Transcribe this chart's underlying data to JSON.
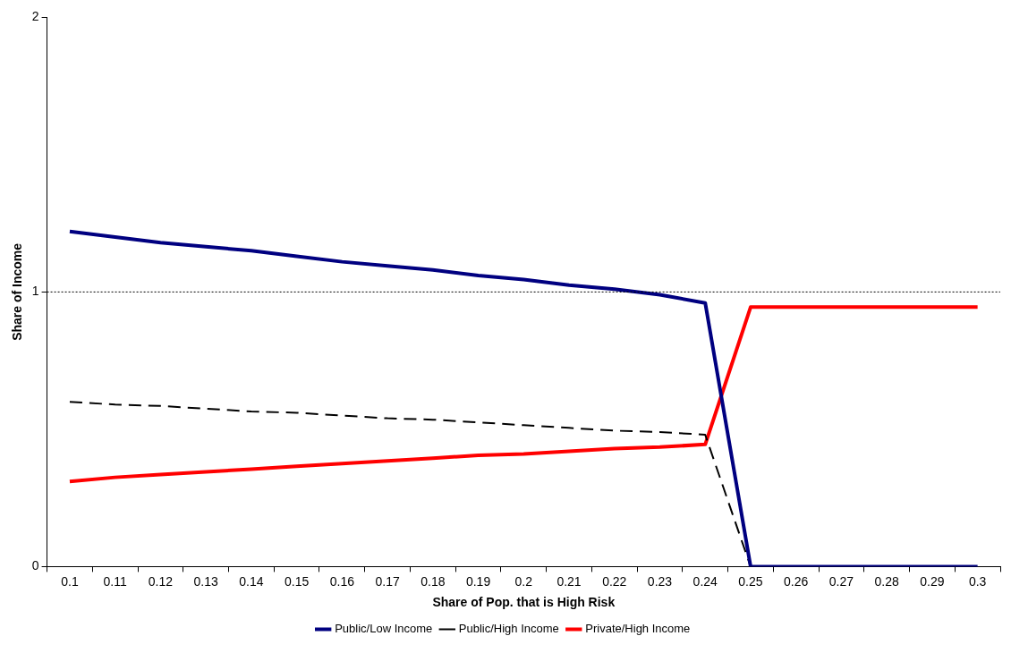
{
  "chart_data": {
    "type": "line",
    "xlabel": "Share of Pop. that is High Risk",
    "ylabel": "Share of Income",
    "categories": [
      "0.1",
      "0.11",
      "0.12",
      "0.13",
      "0.14",
      "0.15",
      "0.16",
      "0.17",
      "0.18",
      "0.19",
      "0.2",
      "0.21",
      "0.22",
      "0.23",
      "0.24",
      "0.25",
      "0.26",
      "0.27",
      "0.28",
      "0.29",
      "0.3"
    ],
    "series": [
      {
        "name": "Public/Low Income",
        "color": "#000080",
        "line_style": "solid",
        "values": [
          1.22,
          1.2,
          1.18,
          1.165,
          1.15,
          1.13,
          1.11,
          1.095,
          1.08,
          1.06,
          1.045,
          1.025,
          1.01,
          0.99,
          0.96,
          0,
          0,
          0,
          0,
          0,
          0
        ]
      },
      {
        "name": "Public/High Income",
        "color": "#000000",
        "line_style": "dashed",
        "values": [
          0.6,
          0.59,
          0.585,
          0.575,
          0.565,
          0.56,
          0.55,
          0.54,
          0.535,
          0.525,
          0.515,
          0.505,
          0.495,
          0.49,
          0.48,
          0,
          0,
          0,
          0,
          0,
          0
        ]
      },
      {
        "name": "Private/High Income",
        "color": "#ff0000",
        "line_style": "solid",
        "values": [
          0.31,
          0.325,
          0.335,
          0.345,
          0.355,
          0.365,
          0.375,
          0.385,
          0.395,
          0.405,
          0.41,
          0.42,
          0.43,
          0.435,
          0.445,
          0.945,
          0.945,
          0.945,
          0.945,
          0.945,
          0.945
        ]
      }
    ],
    "ylim": [
      0,
      2
    ],
    "yticks": [
      0,
      1,
      2
    ],
    "grid": false,
    "legend": "bottom",
    "marker": "none",
    "ref_lines": [
      {
        "axis": "y",
        "value": 1,
        "color": "#000000",
        "line_style": "dotted"
      }
    ]
  }
}
